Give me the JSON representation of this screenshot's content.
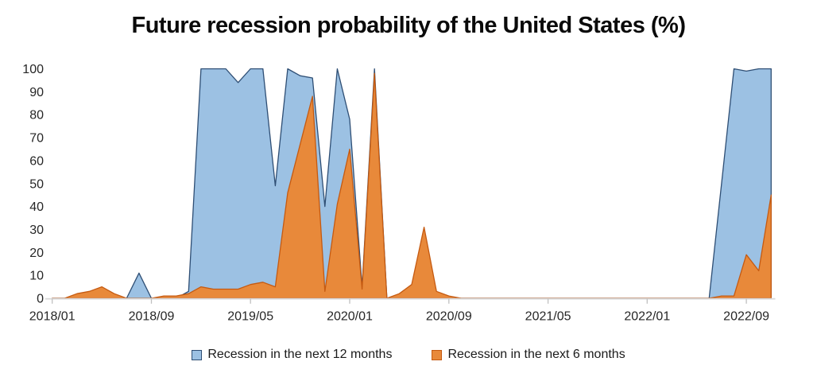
{
  "title": "Future recession probability of the United States (%)",
  "legend": [
    {
      "label": "Recession in the next 12 months",
      "color": "#9CC1E3",
      "border": "#2E4E74"
    },
    {
      "label": "Recession in the next 6 months",
      "color": "#E8893A",
      "border": "#C55A11"
    }
  ],
  "chart_data": {
    "type": "area",
    "title": "Future recession probability of the United States (%)",
    "xlabel": "",
    "ylabel": "",
    "ylim": [
      0,
      100
    ],
    "grid": false,
    "legend_position": "bottom",
    "y_ticks": [
      0,
      10,
      20,
      30,
      40,
      50,
      60,
      70,
      80,
      90,
      100
    ],
    "x_tick_labels": [
      "2018/01",
      "2018/09",
      "2019/05",
      "2020/01",
      "2020/09",
      "2021/05",
      "2022/01",
      "2022/09"
    ],
    "x": [
      "2018/01",
      "2018/02",
      "2018/03",
      "2018/04",
      "2018/05",
      "2018/06",
      "2018/07",
      "2018/08",
      "2018/09",
      "2018/10",
      "2018/11",
      "2018/12",
      "2019/01",
      "2019/02",
      "2019/03",
      "2019/04",
      "2019/05",
      "2019/06",
      "2019/07",
      "2019/08",
      "2019/09",
      "2019/10",
      "2019/11",
      "2019/12",
      "2020/01",
      "2020/02",
      "2020/03",
      "2020/04",
      "2020/05",
      "2020/06",
      "2020/07",
      "2020/08",
      "2020/09",
      "2020/10",
      "2020/11",
      "2020/12",
      "2021/01",
      "2021/02",
      "2021/03",
      "2021/04",
      "2021/05",
      "2021/06",
      "2021/07",
      "2021/08",
      "2021/09",
      "2021/10",
      "2021/11",
      "2021/12",
      "2022/01",
      "2022/02",
      "2022/03",
      "2022/04",
      "2022/05",
      "2022/06",
      "2022/07",
      "2022/08",
      "2022/09",
      "2022/10",
      "2022/11"
    ],
    "series": [
      {
        "name": "Recession in the next 12 months",
        "fill": "#9CC1E3",
        "stroke": "#2E4E74",
        "values": [
          0,
          0,
          0,
          0,
          0,
          0,
          0,
          11,
          0,
          0,
          0,
          3,
          100,
          100,
          100,
          94,
          100,
          100,
          49,
          100,
          97,
          96,
          40,
          100,
          78,
          5,
          100,
          0,
          1,
          0,
          0,
          0,
          0,
          0,
          0,
          0,
          0,
          0,
          0,
          0,
          0,
          0,
          0,
          0,
          0,
          0,
          0,
          0,
          0,
          0,
          0,
          0,
          0,
          0,
          50,
          100,
          99,
          100,
          100
        ]
      },
      {
        "name": "Recession in the next 6 months",
        "fill": "#E8893A",
        "stroke": "#C55A11",
        "values": [
          0,
          0,
          2,
          3,
          5,
          2,
          0,
          0,
          0,
          1,
          1,
          2,
          5,
          4,
          4,
          4,
          6,
          7,
          5,
          46,
          67,
          88,
          3,
          41,
          65,
          4,
          98,
          0,
          2,
          6,
          31,
          3,
          1,
          0,
          0,
          0,
          0,
          0,
          0,
          0,
          0,
          0,
          0,
          0,
          0,
          0,
          0,
          0,
          0,
          0,
          0,
          0,
          0,
          0,
          1,
          1,
          19,
          12,
          45
        ]
      }
    ],
    "axis_color": "#D9D9D9",
    "tick_color": "#C0C0C0",
    "label_color": "#262626"
  }
}
